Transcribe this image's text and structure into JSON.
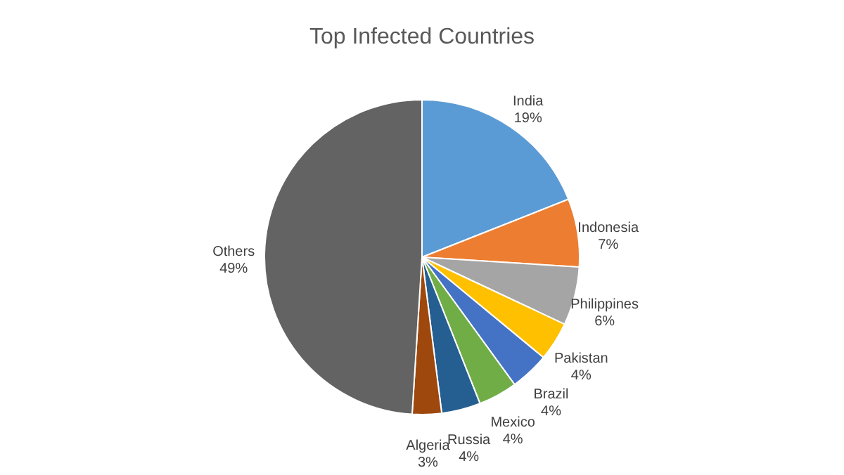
{
  "chart_data": {
    "type": "pie",
    "title": "Top Infected Countries",
    "categories": [
      "India",
      "Indonesia",
      "Philippines",
      "Pakistan",
      "Brazil",
      "Mexico",
      "Russia",
      "Algeria",
      "Others"
    ],
    "values": [
      19,
      7,
      6,
      4,
      4,
      4,
      4,
      3,
      49
    ],
    "value_labels": [
      "19%",
      "7%",
      "6%",
      "4%",
      "4%",
      "4%",
      "4%",
      "3%",
      "49%"
    ],
    "colors": [
      "#5b9bd5",
      "#ed7d31",
      "#a5a5a5",
      "#ffc000",
      "#4472c4",
      "#70ad47",
      "#255e91",
      "#9e480e",
      "#636363"
    ],
    "legend": false
  }
}
